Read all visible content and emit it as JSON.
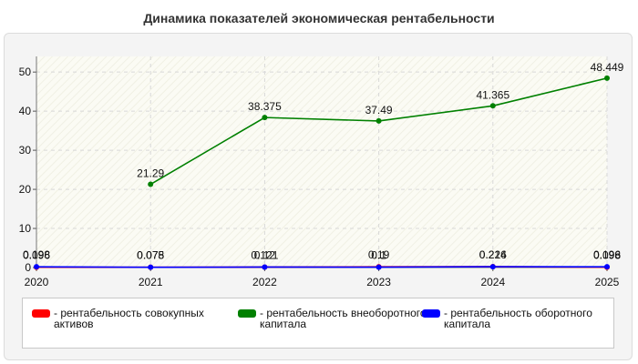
{
  "title": "Динамика показателей экономическая рентабельности",
  "chart_data": {
    "type": "line",
    "title": "Динамика показателей экономическая рентабельности",
    "xlabel": "",
    "ylabel": "",
    "x": [
      "2020",
      "2021",
      "2022",
      "2023",
      "2024",
      "2025"
    ],
    "ylim": [
      0,
      54
    ],
    "yticks": [
      0,
      10,
      20,
      30,
      40,
      50
    ],
    "grid": true,
    "legend_position": "bottom",
    "series": [
      {
        "name": "- рентабельность совокупных активов",
        "color": "#ff0000",
        "values": [
          0.096,
          0.078,
          0.121,
          0.19,
          0.226,
          0.098
        ],
        "labels": [
          "0.096",
          "0.078",
          "0.121",
          "0.19",
          "0.226",
          "0.098"
        ]
      },
      {
        "name": "- рентабельность внеоборотного капитала",
        "color": "#008000",
        "values": [
          null,
          21.29,
          38.375,
          37.49,
          41.365,
          48.449
        ],
        "labels": [
          "",
          "21.29",
          "38.375",
          "37.49",
          "41.365",
          "48.449"
        ]
      },
      {
        "name": "- рентабельность оборотного капитала",
        "color": "#0000ff",
        "values": [
          0.198,
          0.075,
          0.12,
          0.1,
          0.214,
          0.196
        ],
        "labels": [
          "0.198",
          "0.075",
          "0.12",
          "0.1",
          "0.214",
          "0.196"
        ]
      }
    ]
  }
}
